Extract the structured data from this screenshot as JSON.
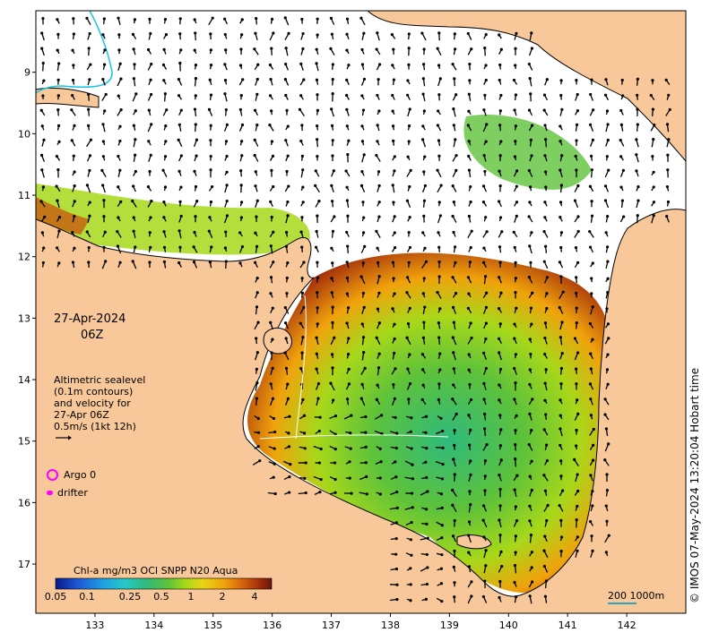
{
  "map": {
    "lon_ticks": [
      "133",
      "134",
      "135",
      "136",
      "137",
      "138",
      "139",
      "140",
      "141",
      "142"
    ],
    "lat_ticks": [
      "9",
      "10",
      "11",
      "12",
      "13",
      "14",
      "15",
      "16",
      "17"
    ],
    "lon_range": [
      132.0,
      143.0
    ],
    "lat_range": [
      -8.0,
      -17.8
    ],
    "date": "27-Apr-2024",
    "hour": "06Z",
    "altimetry_text": [
      "Altimetric sealevel",
      "(0.1m contours)",
      "and velocity for",
      "27-Apr 06Z",
      "0.5m/s (1kt 12h)"
    ],
    "argo_label": "Argo 0",
    "drifter_label": "drifter",
    "colorbar_title": "Chl-a mg/m3 OCI SNPP N20 Aqua",
    "colorbar_labels": [
      "0.05",
      "0.1",
      "0.25",
      "0.5",
      "1",
      "2",
      "4"
    ],
    "colorbar_colors": [
      "#0a1a8a",
      "#1d55d6",
      "#1fa0e0",
      "#25c8c8",
      "#2fba7c",
      "#5ec23a",
      "#a7d81a",
      "#e8d616",
      "#f0a20c",
      "#d9660a",
      "#a5300b",
      "#6b140a"
    ],
    "scale_text": "200  1000m",
    "copyright": "© IMOS 07-May-2024 13:20:04 Hobart time",
    "land_color": "#f8c89a",
    "ocean_color": "#ffffff"
  }
}
